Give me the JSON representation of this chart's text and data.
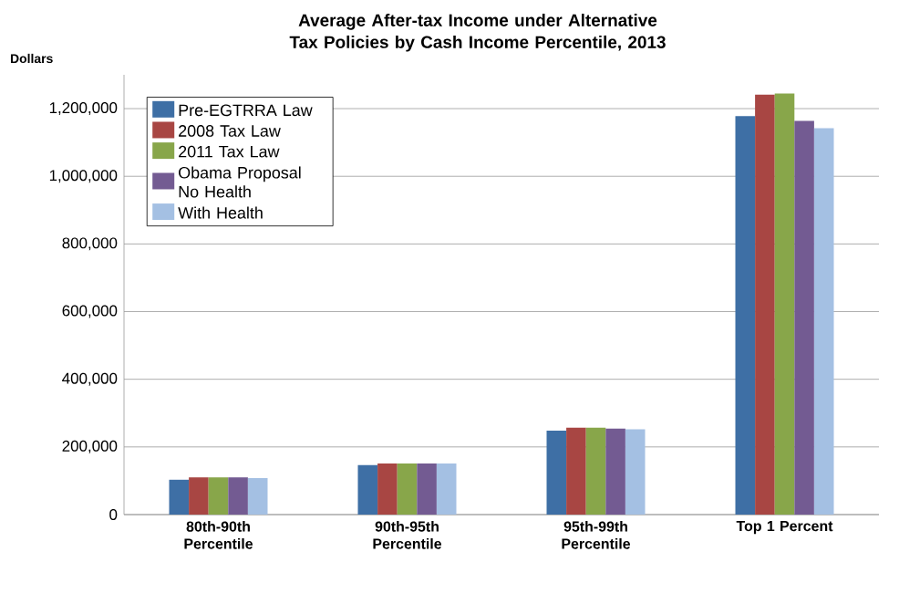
{
  "chart_data": {
    "type": "bar",
    "title": "Average After-tax Income under Alternative Tax Policies  by Cash Income Percentile, 2013",
    "ylabel": "Dollars",
    "categories": [
      "80th-90th Percentile",
      "90th-95th Percentile",
      "95th-99th Percentile",
      "Top 1 Percent"
    ],
    "series": [
      {
        "name": "Pre-EGTRRA Law",
        "color": "#3e6fa5",
        "values": [
          103000,
          146000,
          248000,
          1178000
        ]
      },
      {
        "name": "2008 Tax Law",
        "color": "#a84643",
        "values": [
          110000,
          151000,
          257000,
          1241000
        ]
      },
      {
        "name": "2011 Tax Law",
        "color": "#88a64a",
        "values": [
          110000,
          151000,
          257000,
          1245000
        ]
      },
      {
        "name": "Obama Proposal No Health",
        "color": "#735b92",
        "values": [
          110000,
          151000,
          254000,
          1164000
        ]
      },
      {
        "name": "With Health",
        "color": "#a4c0e3",
        "values": [
          108000,
          151000,
          252000,
          1142000
        ]
      }
    ],
    "ylim": [
      0,
      1300000
    ],
    "yticks": [
      {
        "value": 0,
        "label": "0"
      },
      {
        "value": 200000,
        "label": "200,000"
      },
      {
        "value": 400000,
        "label": "400,000"
      },
      {
        "value": 600000,
        "label": "600,000"
      },
      {
        "value": 800000,
        "label": "800,000"
      },
      {
        "value": 1000000,
        "label": "1,000,000"
      },
      {
        "value": 1200000,
        "label": "1,200,000"
      }
    ],
    "grid": "y",
    "legend": "top left"
  }
}
